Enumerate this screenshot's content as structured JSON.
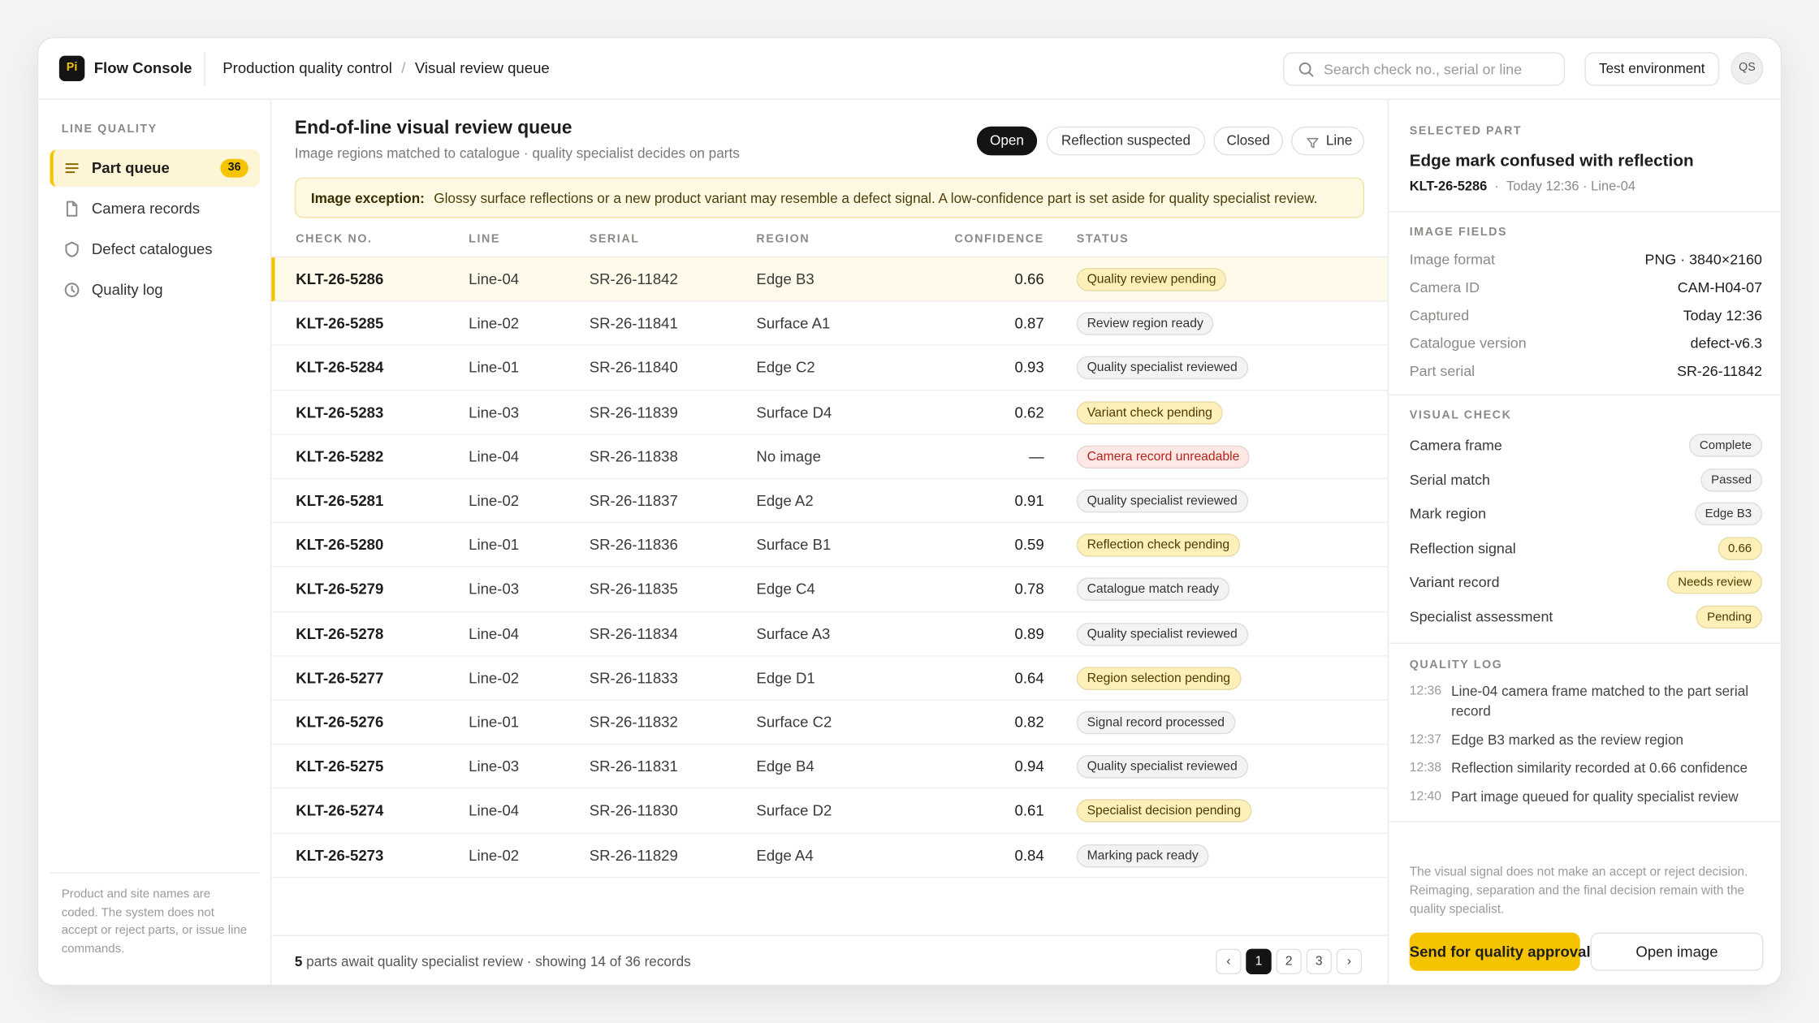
{
  "header": {
    "logo": "Pi",
    "app": "Flow Console",
    "breadcrumb": [
      "Production quality control",
      "Visual review queue"
    ],
    "separator": "/",
    "search_placeholder": "Search check no., serial or line",
    "environment": "Test environment",
    "avatar": "QS"
  },
  "sidebar": {
    "section": "LINE QUALITY",
    "active": 0,
    "nav": [
      {
        "label": "Part queue",
        "badge": "36"
      },
      {
        "label": "Camera records"
      },
      {
        "label": "Defect catalogues"
      },
      {
        "label": "Quality log"
      }
    ],
    "note": "Product and site names are coded. The system does not accept or reject parts, or issue line commands."
  },
  "queue": {
    "title": "End-of-line visual review queue",
    "subtitle": "Image regions matched to catalogue · quality specialist decides on parts",
    "filters": [
      "Open",
      "Reflection suspected",
      "Closed",
      "Line"
    ],
    "active_filter": 0,
    "banner": {
      "label": "Image exception:",
      "text": "Glossy surface reflections or a new product variant may resemble a defect signal. A low-confidence part is set aside for quality specialist review."
    },
    "table": {
      "columns": [
        "CHECK NO.",
        "LINE",
        "SERIAL",
        "REGION",
        "CONFIDENCE",
        "STATUS"
      ],
      "selected_row": 0,
      "rows": [
        {
          "check": "KLT-26-5286",
          "line": "Line-04",
          "serial": "SR-26-11842",
          "region": "Edge B3",
          "confidence": 0.66,
          "status": "Quality review pending",
          "status_fill": "#fdf0b8",
          "status_ink": "#4d3b00"
        },
        {
          "check": "KLT-26-5285",
          "line": "Line-02",
          "serial": "SR-26-11841",
          "region": "Surface A1",
          "confidence": 0.87,
          "status": "Review region ready",
          "status_fill": "#f3f3f1",
          "status_ink": "#333333"
        },
        {
          "check": "KLT-26-5284",
          "line": "Line-01",
          "serial": "SR-26-11840",
          "region": "Edge C2",
          "confidence": 0.93,
          "status": "Quality specialist reviewed",
          "status_fill": "#f3f3f1",
          "status_ink": "#333333"
        },
        {
          "check": "KLT-26-5283",
          "line": "Line-03",
          "serial": "SR-26-11839",
          "region": "Surface D4",
          "confidence": 0.62,
          "status": "Variant check pending",
          "status_fill": "#fdf0b8",
          "status_ink": "#4d3b00"
        },
        {
          "check": "KLT-26-5282",
          "line": "Line-04",
          "serial": "SR-26-11838",
          "region": "No image",
          "confidence": "—",
          "status": "Camera record unreadable",
          "status_fill": "#fde8e6",
          "status_ink": "#b42318"
        },
        {
          "check": "KLT-26-5281",
          "line": "Line-02",
          "serial": "SR-26-11837",
          "region": "Edge A2",
          "confidence": 0.91,
          "status": "Quality specialist reviewed",
          "status_fill": "#f3f3f1",
          "status_ink": "#333333"
        },
        {
          "check": "KLT-26-5280",
          "line": "Line-01",
          "serial": "SR-26-11836",
          "region": "Surface B1",
          "confidence": 0.59,
          "status": "Reflection check pending",
          "status_fill": "#fdf0b8",
          "status_ink": "#4d3b00"
        },
        {
          "check": "KLT-26-5279",
          "line": "Line-03",
          "serial": "SR-26-11835",
          "region": "Edge C4",
          "confidence": 0.78,
          "status": "Catalogue match ready",
          "status_fill": "#f3f3f1",
          "status_ink": "#333333"
        },
        {
          "check": "KLT-26-5278",
          "line": "Line-04",
          "serial": "SR-26-11834",
          "region": "Surface A3",
          "confidence": 0.89,
          "status": "Quality specialist reviewed",
          "status_fill": "#f3f3f1",
          "status_ink": "#333333"
        },
        {
          "check": "KLT-26-5277",
          "line": "Line-02",
          "serial": "SR-26-11833",
          "region": "Edge D1",
          "confidence": 0.64,
          "status": "Region selection pending",
          "status_fill": "#fdf0b8",
          "status_ink": "#4d3b00"
        },
        {
          "check": "KLT-26-5276",
          "line": "Line-01",
          "serial": "SR-26-11832",
          "region": "Surface C2",
          "confidence": 0.82,
          "status": "Signal record processed",
          "status_fill": "#f3f3f1",
          "status_ink": "#333333"
        },
        {
          "check": "KLT-26-5275",
          "line": "Line-03",
          "serial": "SR-26-11831",
          "region": "Edge B4",
          "confidence": 0.94,
          "status": "Quality specialist reviewed",
          "status_fill": "#f3f3f1",
          "status_ink": "#333333"
        },
        {
          "check": "KLT-26-5274",
          "line": "Line-04",
          "serial": "SR-26-11830",
          "region": "Surface D2",
          "confidence": 0.61,
          "status": "Specialist decision pending",
          "status_fill": "#fdf0b8",
          "status_ink": "#4d3b00"
        },
        {
          "check": "KLT-26-5273",
          "line": "Line-02",
          "serial": "SR-26-11829",
          "region": "Edge A4",
          "confidence": 0.84,
          "status": "Marking pack ready",
          "status_fill": "#f3f3f1",
          "status_ink": "#333333"
        }
      ]
    },
    "footer": {
      "count": "5",
      "text": "parts await quality specialist review · showing 14 of 36 records"
    },
    "pages": [
      "1",
      "2",
      "3"
    ],
    "active_page": 0
  },
  "selected": {
    "label": "SELECTED PART",
    "title": "Edge mark confused with reflection",
    "id": "KLT-26-5286",
    "meta": "Today 12:36 · Line-04",
    "image_fields": {
      "label": "IMAGE FIELDS",
      "rows": [
        [
          "Image format",
          "PNG · 3840×2160"
        ],
        [
          "Camera ID",
          "CAM-H04-07"
        ],
        [
          "Captured",
          "Today 12:36"
        ],
        [
          "Catalogue version",
          "defect-v6.3"
        ],
        [
          "Part serial",
          "SR-26-11842"
        ]
      ]
    },
    "visual_check": {
      "label": "VISUAL CHECK",
      "rows": [
        {
          "name": "Camera frame",
          "value": "Complete",
          "fill": "#f3f3f1",
          "ink": "#333333"
        },
        {
          "name": "Serial match",
          "value": "Passed",
          "fill": "#f3f3f1",
          "ink": "#333333"
        },
        {
          "name": "Mark region",
          "value": "Edge B3",
          "fill": "#f3f3f1",
          "ink": "#333333"
        },
        {
          "name": "Reflection signal",
          "value": 0.66,
          "fill": "#fdf0b8",
          "ink": "#4d3b00"
        },
        {
          "name": "Variant record",
          "value": "Needs review",
          "fill": "#fdf0b8",
          "ink": "#4d3b00"
        },
        {
          "name": "Specialist assessment",
          "value": "Pending",
          "fill": "#fdf0b8",
          "ink": "#4d3b00"
        }
      ]
    },
    "quality_log": {
      "label": "QUALITY LOG",
      "entries": [
        {
          "time": "12:36",
          "text": "Line-04 camera frame matched to the part serial record"
        },
        {
          "time": "12:37",
          "text": "Edge B3 marked as the review region"
        },
        {
          "time": "12:38",
          "text": "Reflection similarity recorded at 0.66 confidence"
        },
        {
          "time": "12:40",
          "text": "Part image queued for quality specialist review"
        }
      ]
    },
    "note": "The visual signal does not make an accept or reject decision. Reimaging, separation and the final decision remain with the quality specialist.",
    "primary_action": "Send for quality approval",
    "secondary_action": "Open image"
  }
}
